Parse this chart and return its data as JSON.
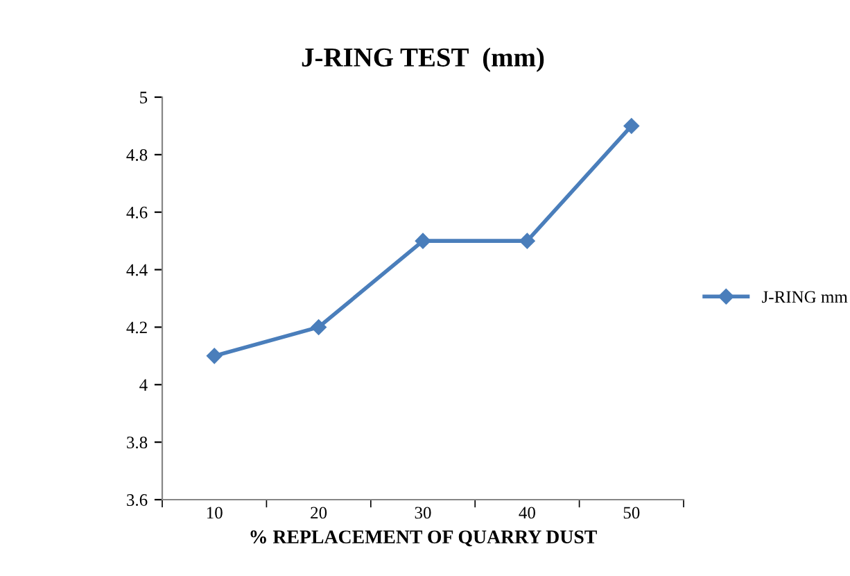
{
  "chart_data": {
    "type": "line",
    "title": "J-RING TEST  (mm)",
    "xlabel": "% REPLACEMENT OF QUARRY DUST",
    "categories": [
      "10",
      "20",
      "30",
      "40",
      "50"
    ],
    "series": [
      {
        "name": "J-RING mm",
        "color": "#4a7ebb",
        "values": [
          4.1,
          4.2,
          4.5,
          4.5,
          4.9
        ]
      }
    ],
    "ylim": [
      3.6,
      5
    ],
    "yticks": [
      3.6,
      3.8,
      4,
      4.2,
      4.4,
      4.6,
      4.8,
      5
    ],
    "grid": false,
    "legend": "right",
    "marker": "diamond",
    "line_style": "solid"
  }
}
